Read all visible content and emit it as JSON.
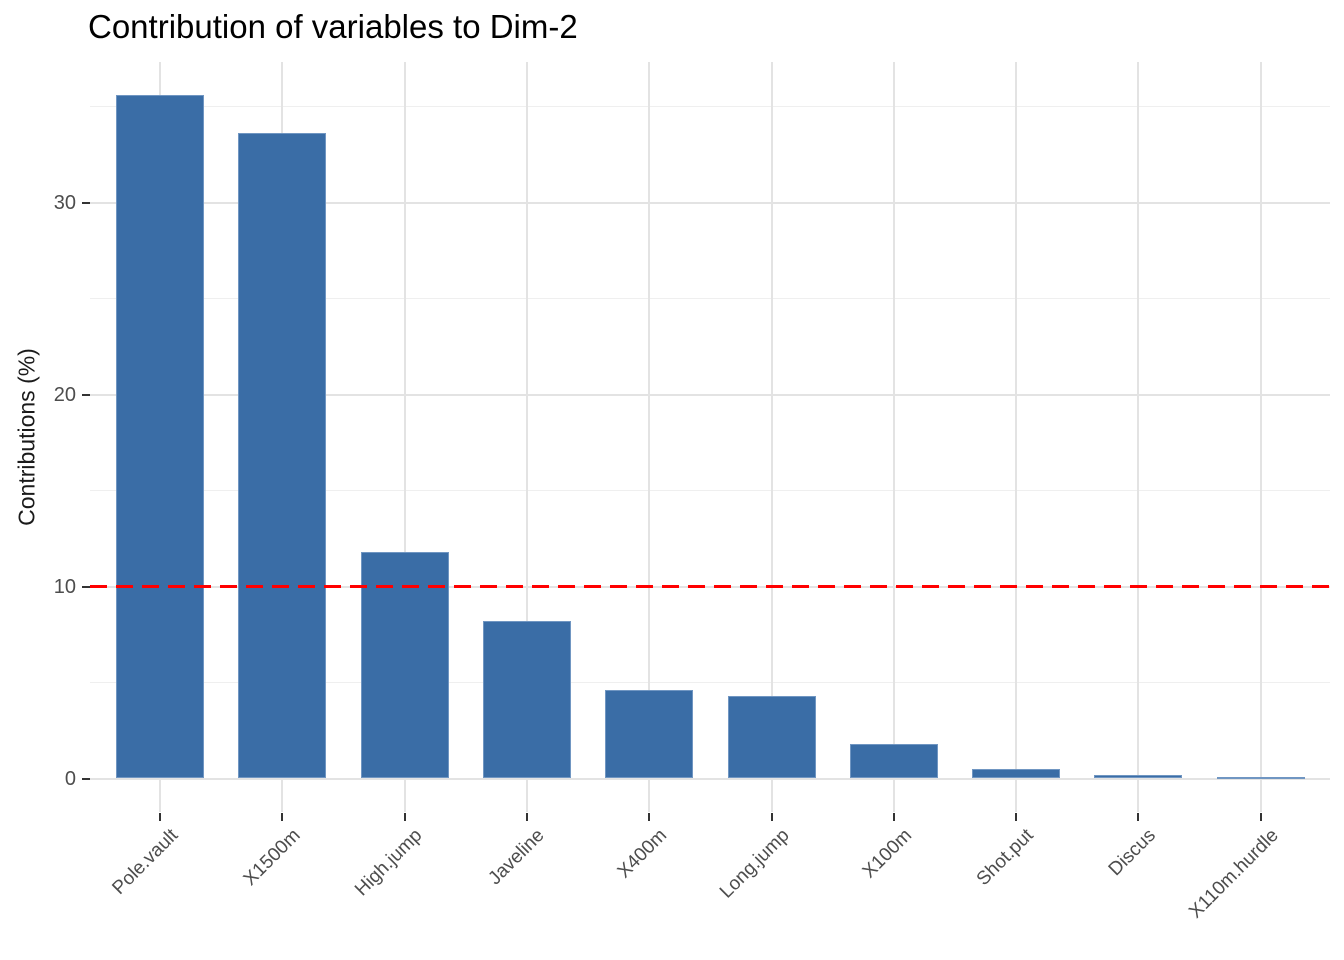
{
  "chart_data": {
    "type": "bar",
    "title": "Contribution of variables to Dim-2",
    "ylabel": "Contributions (%)",
    "xlabel": "",
    "categories": [
      "Pole.vault",
      "X1500m",
      "High.jump",
      "Javeline",
      "X400m",
      "Long.jump",
      "X100m",
      "Shot.put",
      "Discus",
      "X110m.hurdle"
    ],
    "values": [
      35.6,
      33.6,
      11.8,
      8.2,
      4.6,
      4.3,
      1.8,
      0.5,
      0.2,
      0.1
    ],
    "y_ticks": [
      0,
      10,
      20,
      30
    ],
    "y_minor_ticks": [
      5,
      15,
      25,
      35
    ],
    "ylim": [
      -1.7,
      37.3
    ],
    "grid": true,
    "legend": "none",
    "reference_line": {
      "value": 10,
      "style": "dashed",
      "color": "#FF0000"
    },
    "colors": {
      "bar_fill": "#3A6DA6",
      "bar_border": "#7096C2",
      "grid_major": "#E3E3E3",
      "grid_minor": "#EFEFEF",
      "tick_mark": "#333333",
      "tick_label": "#4D4D4D",
      "title": "#000000",
      "background": "#FFFFFF"
    }
  }
}
